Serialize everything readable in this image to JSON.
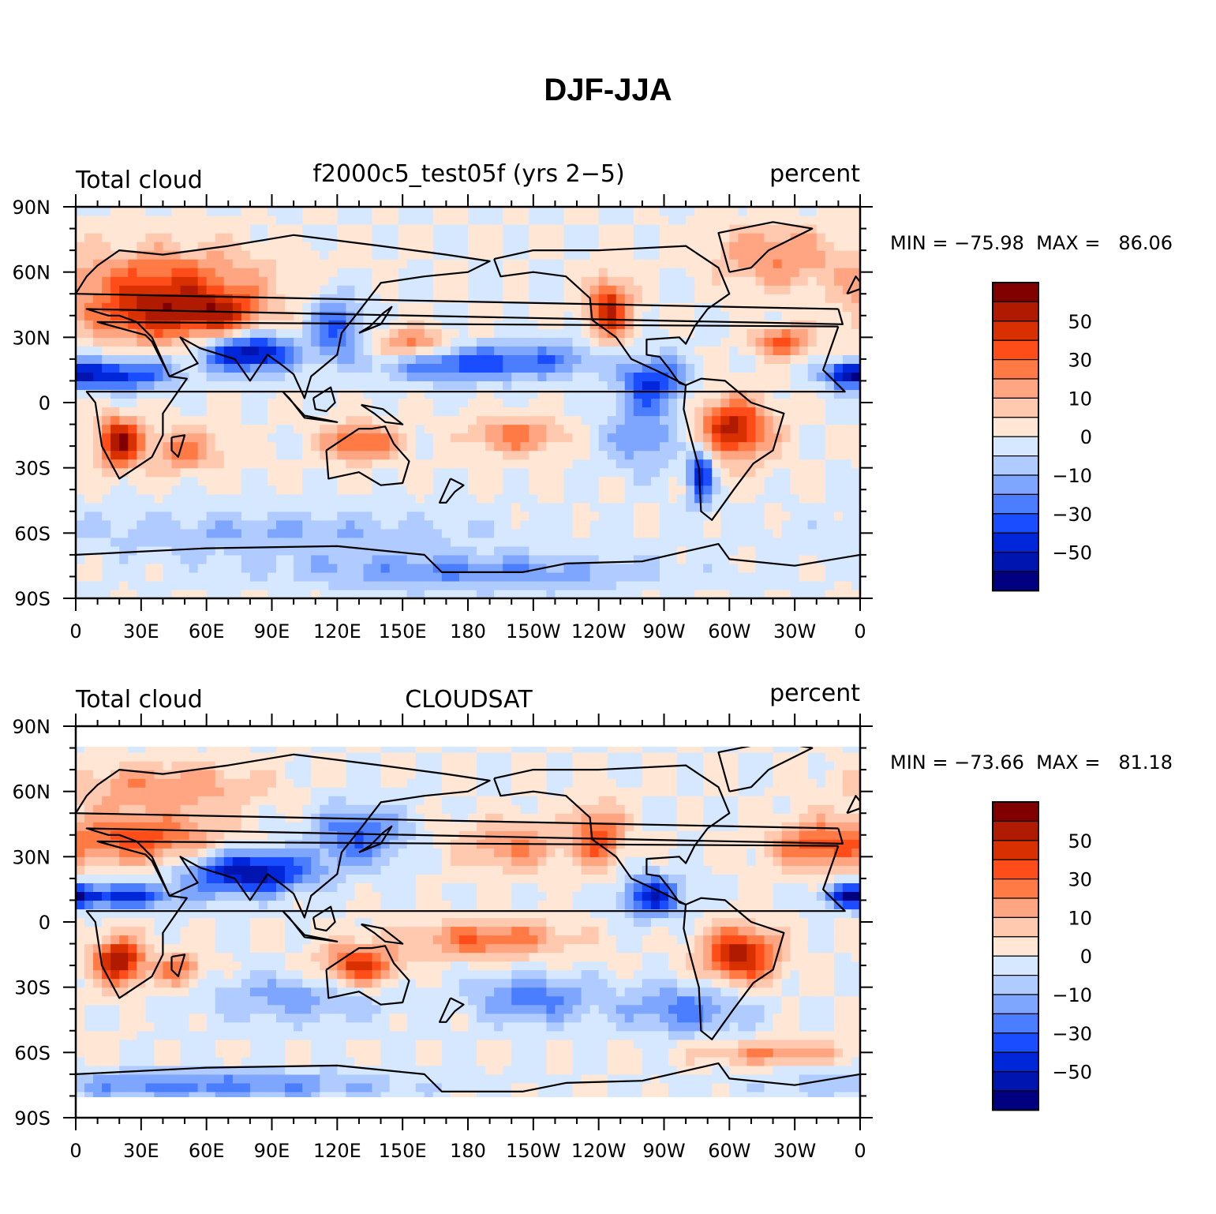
{
  "title": "DJF-JJA",
  "panels": [
    {
      "left_label": "Total cloud",
      "center_label": "f2000c5_test05f (yrs 2−5)",
      "right_label": "percent",
      "stats": "MIN = −75.98  MAX =   86.06",
      "min": -75.98,
      "max": 86.06
    },
    {
      "left_label": "Total cloud",
      "center_label": "CLOUDSAT",
      "right_label": "percent",
      "stats": "MIN = −73.66  MAX =   81.18",
      "min": -73.66,
      "max": 81.18
    }
  ],
  "x_ticks": [
    "0",
    "30E",
    "60E",
    "90E",
    "120E",
    "150E",
    "180",
    "150W",
    "120W",
    "90W",
    "60W",
    "30W",
    "0"
  ],
  "y_ticks": [
    "90N",
    "60N",
    "30N",
    "0",
    "30S",
    "60S",
    "90S"
  ],
  "colorbar": {
    "colors": [
      "#800000",
      "#b01a00",
      "#d93000",
      "#ff4d1a",
      "#ff7a45",
      "#ffa582",
      "#ffc9b0",
      "#ffe6d5",
      "#d5e8ff",
      "#b0cbff",
      "#7fa6ff",
      "#4a7dff",
      "#1a4dff",
      "#0026d9",
      "#0014b0",
      "#000080"
    ],
    "labels": [
      "50",
      "30",
      "10",
      "0",
      "−10",
      "−30",
      "−50"
    ]
  }
}
